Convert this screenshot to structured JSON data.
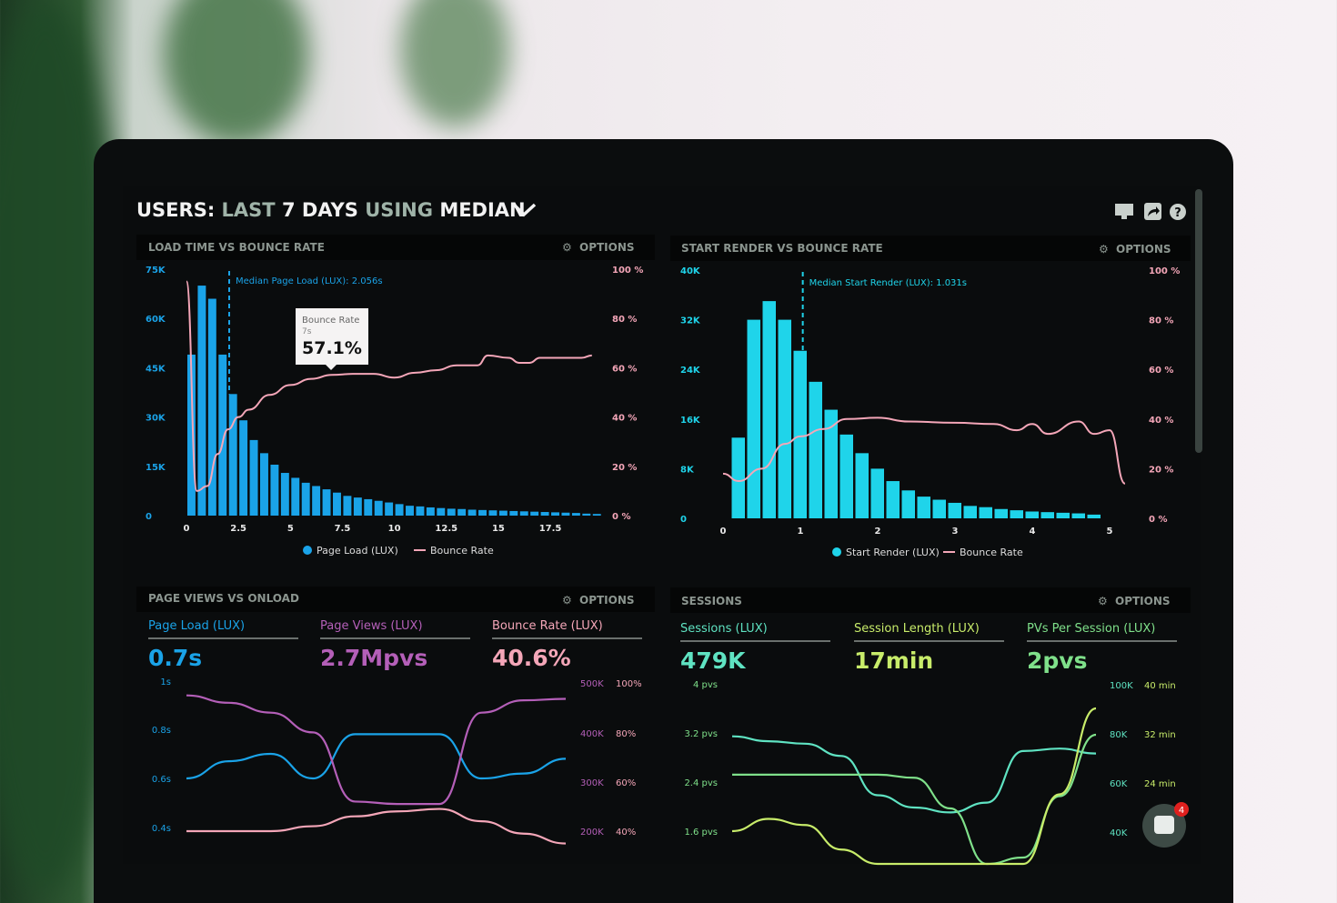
{
  "header": {
    "title_parts": [
      "USERS:",
      "LAST",
      "7 DAYS",
      "USING",
      "MEDIAN"
    ],
    "icons": [
      "monitor-icon",
      "share-icon",
      "help-icon"
    ]
  },
  "options_label": "OPTIONS",
  "chat_badge": "4",
  "colors": {
    "blue": "#1aa3e8",
    "cyan": "#1fd4ea",
    "pink": "#f4a6b8",
    "purple": "#b45fb8",
    "teal": "#5fe3c2",
    "green": "#7fe08a",
    "yellowgreen": "#c8ec6a"
  },
  "chart_data": [
    {
      "type": "bar",
      "title": "LOAD TIME VS BOUNCE RATE",
      "annotation": "Median Page Load (LUX): 2.056s",
      "median_x": 2.056,
      "x_ticks": [
        "0",
        "2.5",
        "5",
        "7.5",
        "10",
        "12.5",
        "15",
        "17.5"
      ],
      "y_ticks": [
        "0",
        "15K",
        "30K",
        "45K",
        "60K",
        "75K"
      ],
      "y2_ticks": [
        "0 %",
        "20 %",
        "40 %",
        "60 %",
        "80 %",
        "100 %"
      ],
      "ylim": [
        0,
        75000
      ],
      "y2lim": [
        0,
        100
      ],
      "legend": [
        "Page Load (LUX)",
        "Bounce Rate"
      ],
      "tooltip": {
        "title": "Bounce Rate",
        "x": "7s",
        "value": "57.1%"
      },
      "bars_x_step": 0.5,
      "bars": [
        49,
        70,
        66,
        49,
        37,
        29,
        23,
        19,
        15.5,
        13,
        11.5,
        10,
        9,
        8,
        7,
        6,
        5.5,
        5,
        4.5,
        4,
        3.5,
        3,
        2.8,
        2.5,
        2.3,
        2.1,
        2,
        1.8,
        1.7,
        1.6,
        1.5,
        1.4,
        1.3,
        1.2,
        1.1,
        1,
        0.9,
        0.8,
        0.6,
        0.5
      ],
      "bars_unit": "K",
      "line": [
        [
          0,
          95
        ],
        [
          0.5,
          10
        ],
        [
          1,
          12
        ],
        [
          1.5,
          25
        ],
        [
          2,
          35
        ],
        [
          2.5,
          40
        ],
        [
          3,
          43
        ],
        [
          4,
          49
        ],
        [
          5,
          53
        ],
        [
          6,
          55.5
        ],
        [
          7,
          57.1
        ],
        [
          8,
          57.5
        ],
        [
          9,
          57.5
        ],
        [
          10,
          56
        ],
        [
          11,
          58
        ],
        [
          12,
          59
        ],
        [
          13,
          61
        ],
        [
          14,
          61
        ],
        [
          14.5,
          65
        ],
        [
          15.5,
          64
        ],
        [
          16,
          62
        ],
        [
          16.5,
          62
        ],
        [
          17,
          64
        ],
        [
          18,
          64
        ],
        [
          19,
          64
        ],
        [
          19.5,
          65
        ]
      ]
    },
    {
      "type": "bar",
      "title": "START RENDER VS BOUNCE RATE",
      "annotation": "Median Start Render (LUX): 1.031s",
      "median_x": 1.031,
      "x_ticks": [
        "0",
        "1",
        "2",
        "3",
        "4",
        "5"
      ],
      "y_ticks": [
        "0",
        "8K",
        "16K",
        "24K",
        "32K",
        "40K"
      ],
      "y2_ticks": [
        "0 %",
        "20 %",
        "40 %",
        "60 %",
        "80 %",
        "100 %"
      ],
      "ylim": [
        0,
        40000
      ],
      "y2lim": [
        0,
        100
      ],
      "legend": [
        "Start Render (LUX)",
        "Bounce Rate"
      ],
      "bars_x_step": 0.2,
      "bars": [
        13,
        32,
        35,
        32,
        27,
        22,
        17.5,
        13.5,
        10.5,
        8,
        6,
        4.5,
        3.5,
        3,
        2.5,
        2,
        1.8,
        1.5,
        1.3,
        1.1,
        1,
        0.9,
        0.8,
        0.6
      ],
      "bars_unit": "K",
      "line": [
        [
          0,
          18
        ],
        [
          0.2,
          15
        ],
        [
          0.5,
          20
        ],
        [
          0.8,
          30
        ],
        [
          1,
          33
        ],
        [
          1.3,
          36
        ],
        [
          1.6,
          40
        ],
        [
          2,
          40.5
        ],
        [
          2.4,
          39
        ],
        [
          3,
          38.5
        ],
        [
          3.5,
          38
        ],
        [
          3.8,
          35.5
        ],
        [
          4,
          38
        ],
        [
          4.2,
          34
        ],
        [
          4.6,
          39
        ],
        [
          4.8,
          34
        ],
        [
          5,
          35.5
        ],
        [
          5.2,
          14
        ]
      ]
    },
    {
      "type": "line",
      "title": "PAGE VIEWS VS ONLOAD",
      "kpis": [
        {
          "label": "Page Load (LUX)",
          "value": "0.7s"
        },
        {
          "label": "Page Views (LUX)",
          "value": "2.7Mpvs"
        },
        {
          "label": "Bounce Rate (LUX)",
          "value": "40.6%"
        }
      ],
      "y_ticks": [
        "0.4s",
        "0.6s",
        "0.8s",
        "1s"
      ],
      "y2_ticks": [
        "200K",
        "300K",
        "400K",
        "500K"
      ],
      "y3_ticks": [
        "40%",
        "60%",
        "80%",
        "100%"
      ],
      "series": [
        {
          "name": "Page Load (LUX)",
          "values": [
            0.6,
            0.67,
            0.7,
            0.6,
            0.78,
            0.78,
            0.78,
            0.6,
            0.62,
            0.68
          ]
        },
        {
          "name": "Page Views (LUX)",
          "values": [
            475,
            460,
            440,
            400,
            260,
            255,
            255,
            440,
            465,
            468
          ]
        },
        {
          "name": "Bounce Rate (LUX)",
          "values": [
            40,
            40,
            40,
            42,
            46,
            48,
            49,
            44,
            39,
            35
          ]
        }
      ]
    },
    {
      "type": "line",
      "title": "SESSIONS",
      "kpis": [
        {
          "label": "Sessions (LUX)",
          "value": "479K"
        },
        {
          "label": "Session Length (LUX)",
          "value": "17min"
        },
        {
          "label": "PVs Per Session (LUX)",
          "value": "2pvs"
        }
      ],
      "y_ticks": [
        "1.6 pvs",
        "2.4 pvs",
        "3.2 pvs",
        "4 pvs"
      ],
      "y2_ticks": [
        "40K",
        "60K",
        "80K",
        "100K"
      ],
      "y3_ticks": [
        "24 min",
        "32 min",
        "40 min"
      ],
      "series": [
        {
          "name": "Sessions (LUX)",
          "values": [
            79,
            77,
            76,
            71,
            55,
            50,
            48,
            52,
            73,
            74,
            72
          ]
        },
        {
          "name": "Session Length (LUX)",
          "values": [
            25.5,
            25.5,
            25.5,
            25.5,
            25.5,
            25,
            20,
            9,
            12,
            22,
            32
          ]
        },
        {
          "name": "PVs Per Session (LUX)",
          "values": [
            1.6,
            1.8,
            1.7,
            1.3,
            0.9,
            0.6,
            0.5,
            0.5,
            1.0,
            2.2,
            3.6
          ]
        }
      ]
    }
  ]
}
